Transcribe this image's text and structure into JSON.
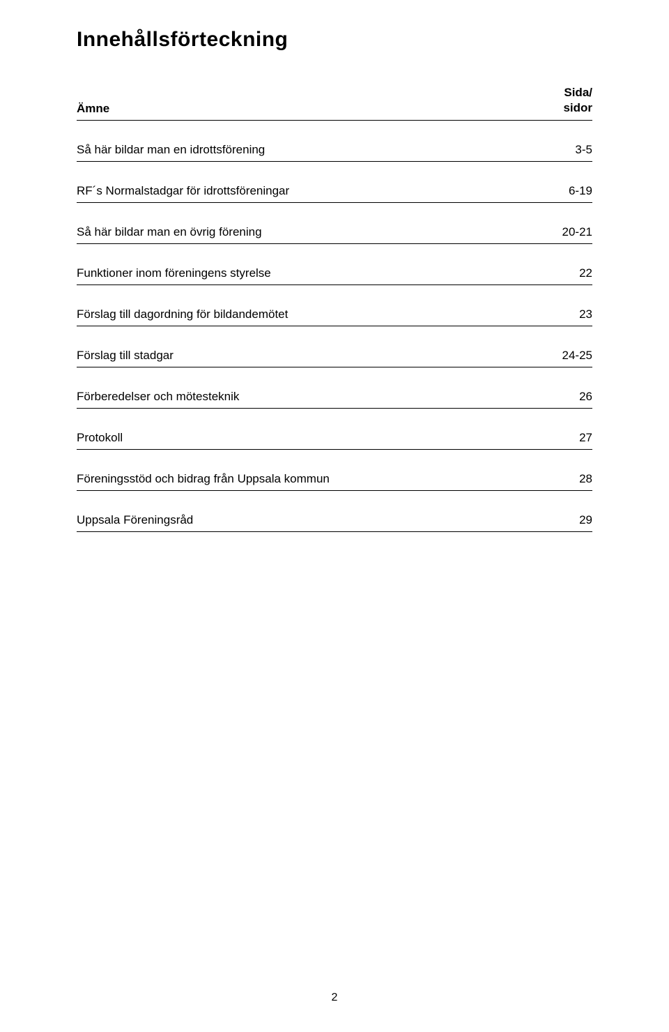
{
  "title": "Innehållsförteckning",
  "header": {
    "left": "Ämne",
    "right_line1": "Sida/",
    "right_line2": "sidor"
  },
  "entries": [
    {
      "label": "Så här bildar man en idrottsförening",
      "page": "3-5"
    },
    {
      "label": "RF´s Normalstadgar för idrottsföreningar",
      "page": "6-19"
    },
    {
      "label": "Så här bildar man en övrig förening",
      "page": "20-21"
    },
    {
      "label": "Funktioner inom föreningens styrelse",
      "page": "22"
    },
    {
      "label": "Förslag till dagordning för bildandemötet",
      "page": "23"
    },
    {
      "label": "Förslag till stadgar",
      "page": "24-25"
    },
    {
      "label": "Förberedelser och mötesteknik",
      "page": "26"
    },
    {
      "label": "Protokoll",
      "page": "27"
    },
    {
      "label": "Föreningsstöd och bidrag från Uppsala kommun",
      "page": "28"
    },
    {
      "label": "Uppsala Föreningsråd",
      "page": "29"
    }
  ],
  "page_number": "2"
}
